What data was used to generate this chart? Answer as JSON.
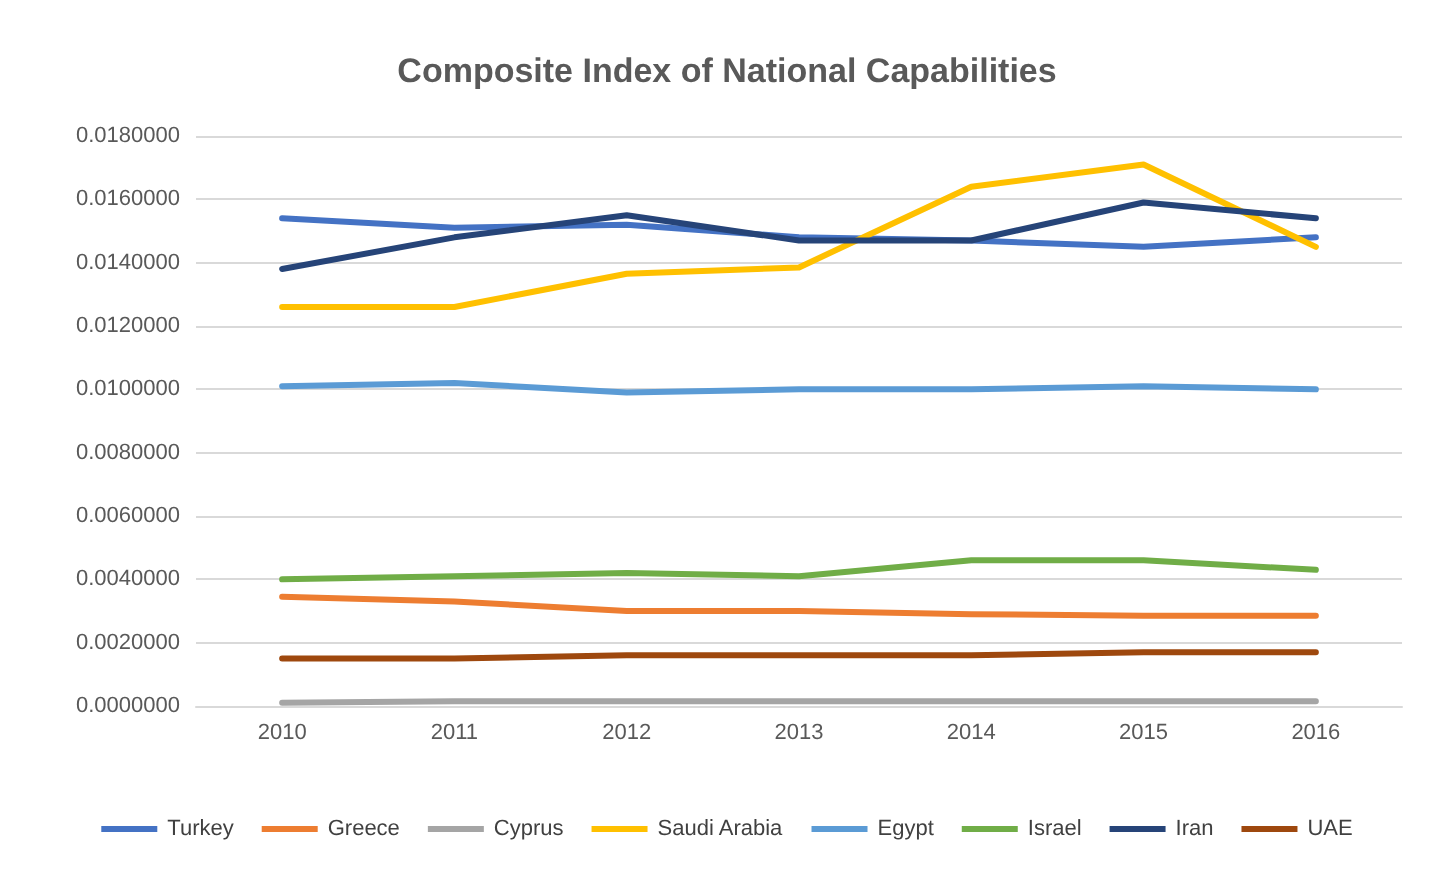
{
  "chart_data": {
    "type": "line",
    "title": "Composite Index of National Capabilities",
    "categories": [
      "2010",
      "2011",
      "2012",
      "2013",
      "2014",
      "2015",
      "2016"
    ],
    "series": [
      {
        "name": "Turkey",
        "color": "#4472c4",
        "values": [
          0.0154,
          0.0151,
          0.0152,
          0.0148,
          0.0147,
          0.0145,
          0.0148
        ]
      },
      {
        "name": "Greece",
        "color": "#ed7d31",
        "values": [
          0.00345,
          0.0033,
          0.003,
          0.003,
          0.0029,
          0.00285,
          0.00285
        ]
      },
      {
        "name": "Cyprus",
        "color": "#a5a5a5",
        "values": [
          0.0001,
          0.00015,
          0.00015,
          0.00015,
          0.00015,
          0.00015,
          0.00015
        ]
      },
      {
        "name": "Saudi Arabia",
        "color": "#ffc000",
        "values": [
          0.0126,
          0.0126,
          0.01365,
          0.01385,
          0.0164,
          0.0171,
          0.0145
        ]
      },
      {
        "name": "Egypt",
        "color": "#5b9bd5",
        "values": [
          0.0101,
          0.0102,
          0.0099,
          0.01,
          0.01,
          0.0101,
          0.01
        ]
      },
      {
        "name": "Israel",
        "color": "#70ad47",
        "values": [
          0.004,
          0.0041,
          0.0042,
          0.0041,
          0.0046,
          0.0046,
          0.0043
        ]
      },
      {
        "name": "Iran",
        "color": "#264478",
        "values": [
          0.0138,
          0.0148,
          0.0155,
          0.0147,
          0.0147,
          0.0159,
          0.0154
        ]
      },
      {
        "name": "UAE",
        "color": "#9e480e",
        "values": [
          0.0015,
          0.0015,
          0.0016,
          0.0016,
          0.0016,
          0.0017,
          0.0017
        ]
      }
    ],
    "ylim": [
      0,
      0.018
    ],
    "yticks": [
      {
        "value": 0,
        "label": "0.0000000"
      },
      {
        "value": 0.002,
        "label": "0.0020000"
      },
      {
        "value": 0.004,
        "label": "0.0040000"
      },
      {
        "value": 0.006,
        "label": "0.0060000"
      },
      {
        "value": 0.008,
        "label": "0.0080000"
      },
      {
        "value": 0.01,
        "label": "0.0100000"
      },
      {
        "value": 0.012,
        "label": "0.0120000"
      },
      {
        "value": 0.014,
        "label": "0.0140000"
      },
      {
        "value": 0.016,
        "label": "0.0160000"
      },
      {
        "value": 0.018,
        "label": "0.0180000"
      }
    ],
    "grid": "y",
    "legend": "bottom",
    "marker": "none",
    "line_style": "solid"
  }
}
